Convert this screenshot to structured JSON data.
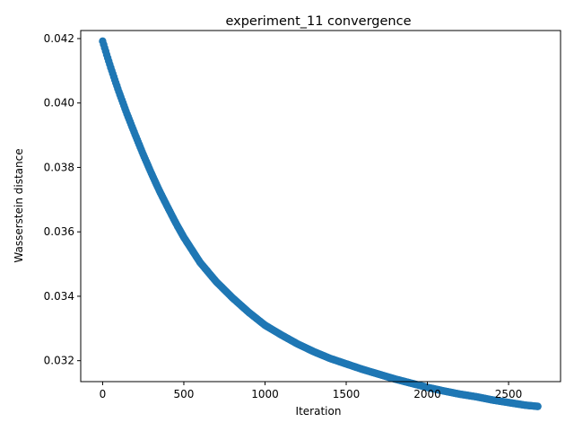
{
  "chart_data": {
    "type": "scatter",
    "title": "experiment_11 convergence",
    "xlabel": "Iteration",
    "ylabel": "Wasserstein distance",
    "xlim": [
      -135,
      2820
    ],
    "ylim": [
      0.03135,
      0.04225
    ],
    "xticks": [
      0,
      500,
      1000,
      1500,
      2000,
      2500
    ],
    "yticks": [
      0.032,
      0.034,
      0.036,
      0.038,
      0.04,
      0.042
    ],
    "ytick_labels": [
      "0.032",
      "0.034",
      "0.036",
      "0.038",
      "0.040",
      "0.042"
    ],
    "grid": false,
    "legend": "none",
    "marker_color": "#1f77b4",
    "series": [
      {
        "x": [
          0,
          25,
          50,
          75,
          100,
          150,
          200,
          250,
          300,
          350,
          400,
          450,
          500,
          600,
          700,
          800,
          900,
          1000,
          1100,
          1200,
          1300,
          1400,
          1500,
          1600,
          1700,
          1800,
          1900,
          2000,
          2100,
          2200,
          2300,
          2400,
          2500,
          2600,
          2680
        ],
        "y": [
          0.04192,
          0.0415,
          0.0411,
          0.04072,
          0.04035,
          0.03966,
          0.03902,
          0.0384,
          0.03782,
          0.03727,
          0.03677,
          0.03628,
          0.03583,
          0.03505,
          0.03445,
          0.03395,
          0.0335,
          0.0331,
          0.0328,
          0.03252,
          0.03228,
          0.03207,
          0.0319,
          0.03173,
          0.03158,
          0.03143,
          0.0313,
          0.03117,
          0.03106,
          0.03096,
          0.03088,
          0.03078,
          0.0307,
          0.03062,
          0.03058
        ]
      }
    ]
  }
}
